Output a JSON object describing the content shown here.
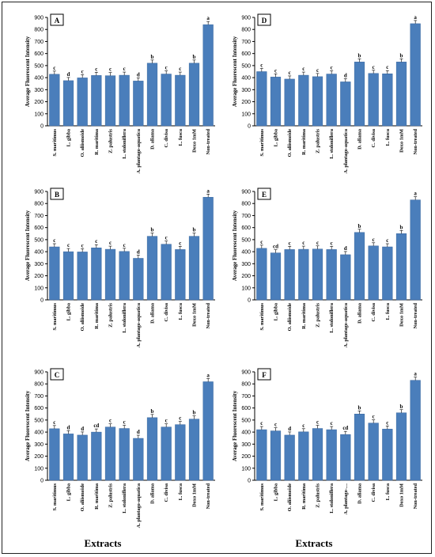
{
  "colors": {
    "bar": "#4a7ebb",
    "bar_stroke": "#3a68a0",
    "axis": "#000000"
  },
  "common_x_label": "Extracts",
  "chart_data": [
    {
      "type": "bar",
      "panel": "A",
      "ylabel": "Average Fluorescent Intensity",
      "ylim": [
        0,
        900
      ],
      "yticks": [
        0,
        100,
        200,
        300,
        400,
        500,
        600,
        700,
        800,
        900
      ],
      "categories": [
        "S. maritimus",
        "L. gibba",
        "O. aliismoide",
        "R. maritima",
        "Z. palustris",
        "L. stoloniflera",
        "A. plantago-aquatica",
        "D. aliama",
        "C. divisa",
        "L. fusca",
        "Doxo 1mM",
        "Non-treated"
      ],
      "values": [
        428,
        375,
        398,
        418,
        416,
        420,
        372,
        520,
        430,
        420,
        520,
        840
      ],
      "letters": [
        "c",
        "d",
        "c",
        "c",
        "c",
        "c",
        "d",
        "b",
        "c",
        "c",
        "b",
        "a"
      ]
    },
    {
      "type": "bar",
      "panel": "D",
      "ylabel": "Average Fluorescent Intensity",
      "ylim": [
        0,
        900
      ],
      "yticks": [
        0,
        100,
        200,
        300,
        400,
        500,
        600,
        700,
        800,
        900
      ],
      "categories": [
        "S. maritimus",
        "L. gibba",
        "O. aliismoide",
        "R. maritima",
        "Z. palustris",
        "L. stoloniflera",
        "A. plantago-aquatica",
        "D. aliama",
        "C. divisa",
        "L. fusca",
        "Doxo 1mM",
        "Non-treated"
      ],
      "values": [
        450,
        405,
        388,
        420,
        408,
        430,
        365,
        530,
        435,
        432,
        530,
        848
      ],
      "letters": [
        "c",
        "c",
        "c",
        "c",
        "c",
        "c",
        "d",
        "b",
        "c",
        "c",
        "b",
        "a"
      ]
    },
    {
      "type": "bar",
      "panel": "B",
      "ylabel": "Average Fluorescent Intensity",
      "ylim": [
        0,
        900
      ],
      "yticks": [
        0,
        100,
        200,
        300,
        400,
        500,
        600,
        700,
        800,
        900
      ],
      "categories": [
        "S. maritimus",
        "L. gibba",
        "O. aliismoide",
        "R. maritima",
        "Z. palustris",
        "L. stoloniflera",
        "A. plantago-aquatica",
        "D. aliama",
        "C. divisa",
        "L. fusca",
        "Doxo 1mM",
        "Non-treated"
      ],
      "values": [
        440,
        400,
        398,
        432,
        420,
        402,
        345,
        528,
        462,
        418,
        528,
        852
      ],
      "letters": [
        "c",
        "c",
        "c",
        "c",
        "c",
        "c",
        "d",
        "b",
        "c",
        "c",
        "b",
        "a"
      ]
    },
    {
      "type": "bar",
      "panel": "E",
      "ylabel": "Average Fluorescent Intensity",
      "ylim": [
        0,
        900
      ],
      "yticks": [
        0,
        100,
        200,
        300,
        400,
        500,
        600,
        700,
        800,
        900
      ],
      "categories": [
        "S. maritimus",
        "L. gibba",
        "O. aliismoide",
        "R. maritima",
        "Z. palustris",
        "L. stoloniflera",
        "A. plantago-aquatica",
        "D. aliama",
        "C. divisa",
        "L. fusca",
        "Doxo 1mM",
        "Non-treated"
      ],
      "values": [
        428,
        390,
        418,
        420,
        422,
        418,
        375,
        560,
        448,
        440,
        550,
        830
      ],
      "letters": [
        "c",
        "cd",
        "c",
        "c",
        "c",
        "c",
        "d",
        "b",
        "c",
        "c",
        "b",
        "a"
      ]
    },
    {
      "type": "bar",
      "panel": "C",
      "ylabel": "Average Fluorescent Intensity",
      "ylim": [
        0,
        900
      ],
      "yticks": [
        0,
        100,
        200,
        300,
        400,
        500,
        600,
        700,
        800,
        900
      ],
      "categories": [
        "S. maritimus",
        "L. gibba",
        "O. aliismoide",
        "R. maritima",
        "Z. palustris",
        "L. stoloniflera",
        "A. plantago-aquatica",
        "D. aliama",
        "C. divisa",
        "L. fusca",
        "Doxo 1mM",
        "Non-treated"
      ],
      "values": [
        428,
        385,
        375,
        400,
        442,
        430,
        348,
        520,
        442,
        462,
        508,
        818
      ],
      "letters": [
        "c",
        "d",
        "d",
        "cd",
        "c",
        "c",
        "d",
        "b",
        "c",
        "c",
        "b",
        "a"
      ]
    },
    {
      "type": "bar",
      "panel": "F",
      "ylabel": "Average Fluorescent Intensity",
      "ylim": [
        0,
        900
      ],
      "yticks": [
        0,
        100,
        200,
        300,
        400,
        500,
        600,
        700,
        800,
        900
      ],
      "categories": [
        "S. maritimus",
        "L. gibba",
        "O. aliismoide",
        "R. maritima",
        "Z. palustris",
        "L. stoloniflera",
        "A. plantago-…",
        "D. aliama",
        "C. divisa",
        "L. fusca",
        "Doxo 1mM",
        "Non-treated"
      ],
      "values": [
        420,
        410,
        375,
        402,
        430,
        420,
        380,
        550,
        475,
        425,
        560,
        830
      ],
      "letters": [
        "c",
        "c",
        "d",
        "c",
        "c",
        "c",
        "cd",
        "b",
        "c",
        "c",
        "b",
        "a"
      ]
    }
  ]
}
